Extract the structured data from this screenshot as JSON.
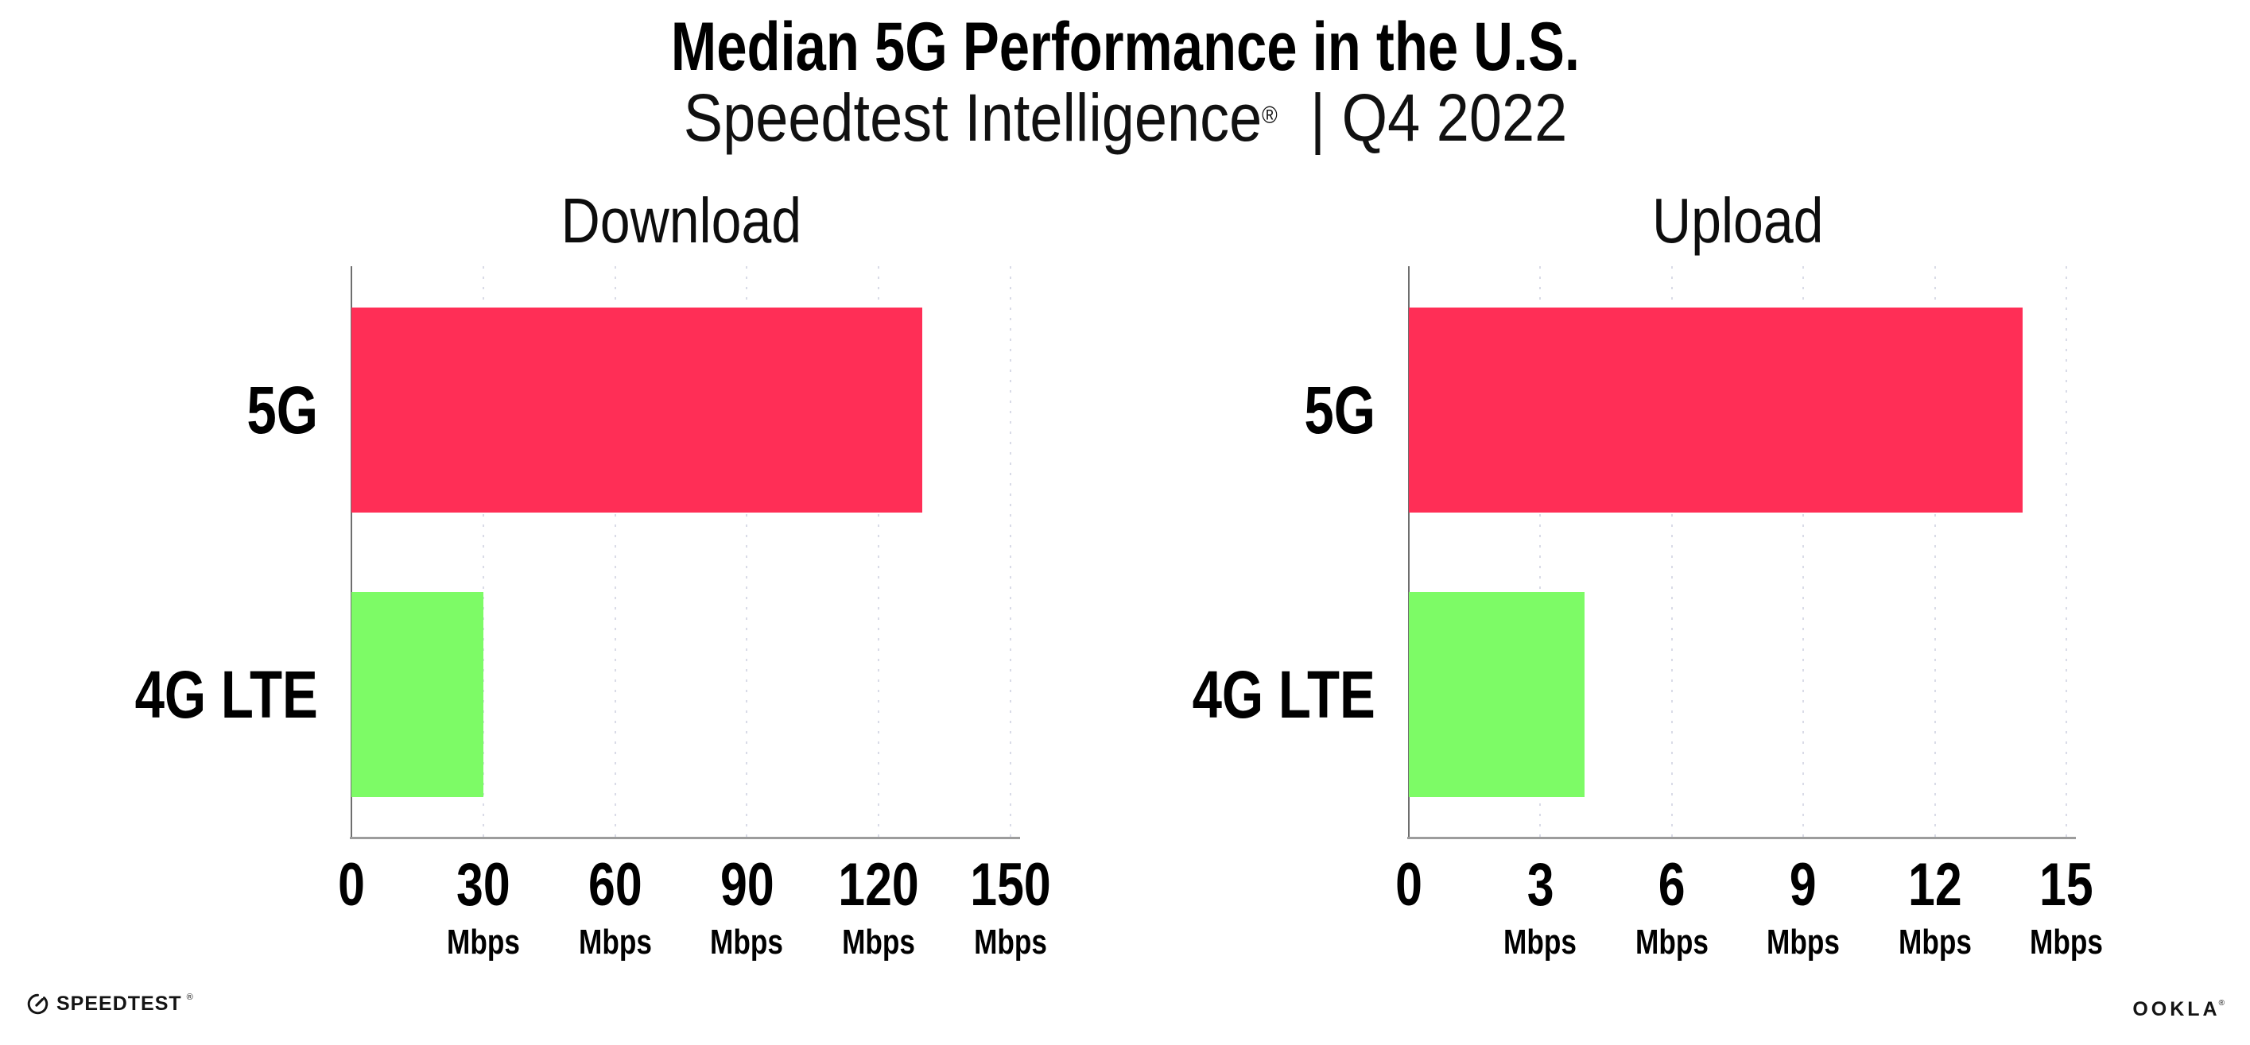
{
  "header": {
    "title": "Median 5G Performance in the U.S.",
    "subtitle_brand": "Speedtest Intelligence",
    "subtitle_reg": "®",
    "subtitle_sep": "|",
    "subtitle_period": "Q4 2022"
  },
  "chart_data": [
    {
      "type": "bar",
      "orientation": "horizontal",
      "title": "Download",
      "categories": [
        "5G",
        "4G LTE"
      ],
      "values": [
        130,
        30
      ],
      "unit": "Mbps",
      "xlim": [
        0,
        150
      ],
      "xticks": [
        0,
        30,
        60,
        90,
        120,
        150
      ],
      "bar_colors": [
        "#FF2E56",
        "#7DFB66"
      ],
      "grid": "vertical-dashed",
      "legend": "none"
    },
    {
      "type": "bar",
      "orientation": "horizontal",
      "title": "Upload",
      "categories": [
        "5G",
        "4G LTE"
      ],
      "values": [
        14,
        4
      ],
      "unit": "Mbps",
      "xlim": [
        0,
        15
      ],
      "xticks": [
        0,
        3,
        6,
        9,
        12,
        15
      ],
      "bar_colors": [
        "#FF2E56",
        "#7DFB66"
      ],
      "grid": "vertical-dashed",
      "legend": "none"
    }
  ],
  "colors": {
    "bar_5g": "#FF2E56",
    "bar_4g_lte": "#7DFB66",
    "gridline": "#D9DBE7",
    "x_axis": "#9C9C9C",
    "y_axis": "#6E6E6E",
    "text": "#000000"
  },
  "footer": {
    "speedtest_label": "SPEEDTEST",
    "speedtest_reg": "®",
    "ookla_label": "OOKLA",
    "ookla_reg": "®"
  }
}
